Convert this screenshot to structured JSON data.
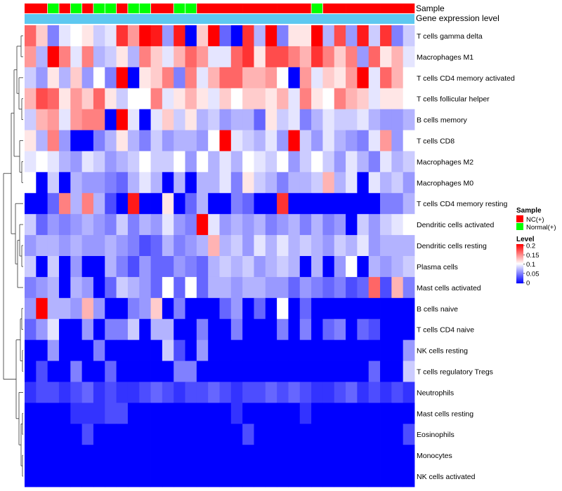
{
  "chart_data": {
    "type": "heatmap",
    "rows": [
      "T cells gamma delta",
      "Macrophages M1",
      "T cells CD4 memory activated",
      "T cells follicular helper",
      "B cells memory",
      "T cells CD8",
      "Macrophages M2",
      "Macrophages M0",
      "T cells CD4 memory resting",
      "Dendritic cells activated",
      "Dendritic cells resting",
      "Plasma cells",
      "Mast cells activated",
      "B cells naive",
      "T cells CD4 naive",
      "NK cells resting",
      "T cells regulatory  Tregs",
      "Neutrophils",
      "Mast cells resting",
      "Eosinophils",
      "Monocytes",
      "NK cells activated"
    ],
    "columns_count": 34,
    "sample_groups": [
      "NC",
      "NC",
      "N",
      "NC",
      "N",
      "NC",
      "N",
      "N",
      "NC",
      "N",
      "N",
      "NC",
      "NC",
      "N",
      "N",
      "NC",
      "NC",
      "NC",
      "NC",
      "NC",
      "NC",
      "NC",
      "NC",
      "NC",
      "NC",
      "N",
      "NC",
      "NC",
      "NC",
      "NC",
      "NC",
      "NC",
      "NC",
      "NC"
    ],
    "annotations": {
      "sample_label": "Sample",
      "gene_label": "Gene expression level"
    },
    "values": [
      [
        0.16,
        0.12,
        0.05,
        0.09,
        0.1,
        0.11,
        0.08,
        0.09,
        0.18,
        0.14,
        0.2,
        0.19,
        0.06,
        0.19,
        0.0,
        0.12,
        0.2,
        0.04,
        0.0,
        0.18,
        0.07,
        0.2,
        0.05,
        0.11,
        0.11,
        0.2,
        0.07,
        0.17,
        0.06,
        0.19,
        0.08,
        0.18,
        0.05,
        0.08
      ],
      [
        0.14,
        0.07,
        0.2,
        0.15,
        0.09,
        0.15,
        0.07,
        0.08,
        0.11,
        0.07,
        0.15,
        0.12,
        0.09,
        0.13,
        0.16,
        0.14,
        0.09,
        0.09,
        0.16,
        0.18,
        0.11,
        0.17,
        0.17,
        0.15,
        0.13,
        0.18,
        0.15,
        0.12,
        0.15,
        0.06,
        0.16,
        0.11,
        0.13,
        0.09
      ],
      [
        0.08,
        0.06,
        0.11,
        0.07,
        0.12,
        0.06,
        0.1,
        0.05,
        0.21,
        0.0,
        0.11,
        0.12,
        0.15,
        0.05,
        0.15,
        0.09,
        0.13,
        0.16,
        0.16,
        0.13,
        0.13,
        0.14,
        0.1,
        0.0,
        0.14,
        0.09,
        0.12,
        0.11,
        0.14,
        0.21,
        0.09,
        0.16,
        0.13,
        0.1
      ],
      [
        0.13,
        0.17,
        0.16,
        0.11,
        0.14,
        0.12,
        0.16,
        0.11,
        0.08,
        0.1,
        0.1,
        0.15,
        0.09,
        0.11,
        0.13,
        0.11,
        0.09,
        0.12,
        0.1,
        0.12,
        0.12,
        0.11,
        0.13,
        0.09,
        0.15,
        0.11,
        0.1,
        0.15,
        0.13,
        0.12,
        0.09,
        0.11,
        0.11,
        0.1
      ],
      [
        0.08,
        0.13,
        0.14,
        0.09,
        0.14,
        0.15,
        0.15,
        0.0,
        0.21,
        0.09,
        0.0,
        0.09,
        0.12,
        0.08,
        0.11,
        0.07,
        0.08,
        0.06,
        0.07,
        0.07,
        0.04,
        0.11,
        0.08,
        0.09,
        0.05,
        0.07,
        0.09,
        0.08,
        0.08,
        0.09,
        0.07,
        0.06,
        0.06,
        0.07
      ],
      [
        0.11,
        0.07,
        0.15,
        0.06,
        0.0,
        0.0,
        0.05,
        0.07,
        0.11,
        0.07,
        0.05,
        0.08,
        0.06,
        0.07,
        0.07,
        0.06,
        0.1,
        0.2,
        0.09,
        0.08,
        0.07,
        0.09,
        0.06,
        0.2,
        0.08,
        0.06,
        0.09,
        0.07,
        0.06,
        0.05,
        0.09,
        0.14,
        0.06,
        0.1
      ],
      [
        0.09,
        0.1,
        0.09,
        0.07,
        0.06,
        0.09,
        0.08,
        0.06,
        0.07,
        0.08,
        0.1,
        0.08,
        0.08,
        0.1,
        0.06,
        0.1,
        0.07,
        0.09,
        0.07,
        0.1,
        0.09,
        0.08,
        0.1,
        0.06,
        0.08,
        0.1,
        0.08,
        0.06,
        0.09,
        0.07,
        0.05,
        0.09,
        0.07,
        0.08
      ],
      [
        0.1,
        0.0,
        0.08,
        0.0,
        0.07,
        0.06,
        0.06,
        0.05,
        0.04,
        0.07,
        0.09,
        0.07,
        0.0,
        0.07,
        0.0,
        0.07,
        0.07,
        0.09,
        0.05,
        0.11,
        0.08,
        0.07,
        0.05,
        0.07,
        0.07,
        0.08,
        0.13,
        0.07,
        0.09,
        0.0,
        0.09,
        0.07,
        0.08,
        0.06
      ],
      [
        0.0,
        0.0,
        0.04,
        0.15,
        0.07,
        0.15,
        0.07,
        0.03,
        0.0,
        0.19,
        0.0,
        0.0,
        0.11,
        0.0,
        0.04,
        0.07,
        0.0,
        0.0,
        0.05,
        0.04,
        0.0,
        0.0,
        0.18,
        0.0,
        0.0,
        0.0,
        0.0,
        0.0,
        0.0,
        0.0,
        0.0,
        0.05,
        0.05,
        0.07
      ],
      [
        0.08,
        0.04,
        0.06,
        0.05,
        0.06,
        0.07,
        0.06,
        0.05,
        0.08,
        0.05,
        0.07,
        0.06,
        0.09,
        0.06,
        0.05,
        0.22,
        0.09,
        0.06,
        0.07,
        0.06,
        0.07,
        0.05,
        0.06,
        0.07,
        0.05,
        0.07,
        0.05,
        0.06,
        0.0,
        0.08,
        0.06,
        0.08,
        0.09,
        0.1
      ],
      [
        0.06,
        0.07,
        0.07,
        0.06,
        0.07,
        0.06,
        0.06,
        0.07,
        0.06,
        0.05,
        0.03,
        0.04,
        0.07,
        0.05,
        0.06,
        0.07,
        0.13,
        0.07,
        0.08,
        0.06,
        0.09,
        0.07,
        0.09,
        0.07,
        0.08,
        0.07,
        0.06,
        0.08,
        0.07,
        0.09,
        0.06,
        0.07,
        0.07,
        0.07
      ],
      [
        0.08,
        0.0,
        0.08,
        0.0,
        0.06,
        0.0,
        0.0,
        0.07,
        0.05,
        0.03,
        0.06,
        0.04,
        0.04,
        0.06,
        0.05,
        0.04,
        0.07,
        0.08,
        0.07,
        0.08,
        0.06,
        0.07,
        0.08,
        0.07,
        0.0,
        0.07,
        0.0,
        0.06,
        0.1,
        0.0,
        0.07,
        0.06,
        0.07,
        0.08
      ],
      [
        0.05,
        0.06,
        0.07,
        0.0,
        0.07,
        0.06,
        0.0,
        0.04,
        0.08,
        0.07,
        0.06,
        0.04,
        0.1,
        0.04,
        0.1,
        0.04,
        0.07,
        0.07,
        0.06,
        0.07,
        0.07,
        0.06,
        0.06,
        0.04,
        0.06,
        0.05,
        0.04,
        0.05,
        0.03,
        0.04,
        0.16,
        0.03,
        0.13,
        0.05
      ],
      [
        0.06,
        0.22,
        0.07,
        0.07,
        0.06,
        0.13,
        0.06,
        0.0,
        0.0,
        0.05,
        0.06,
        0.12,
        0.0,
        0.05,
        0.0,
        0.0,
        0.0,
        0.04,
        0.06,
        0.0,
        0.04,
        0.0,
        0.1,
        0.0,
        0.04,
        0.0,
        0.0,
        0.0,
        0.0,
        0.0,
        0.0,
        0.0,
        0.0,
        0.0
      ],
      [
        0.04,
        0.06,
        0.09,
        0.0,
        0.0,
        0.06,
        0.0,
        0.05,
        0.05,
        0.08,
        0.0,
        0.07,
        0.07,
        0.0,
        0.0,
        0.05,
        0.0,
        0.0,
        0.05,
        0.0,
        0.0,
        0.0,
        0.05,
        0.0,
        0.05,
        0.0,
        0.04,
        0.05,
        0.0,
        0.04,
        0.03,
        0.0,
        0.0,
        0.0
      ],
      [
        0.0,
        0.0,
        0.06,
        0.0,
        0.0,
        0.0,
        0.05,
        0.0,
        0.0,
        0.0,
        0.0,
        0.0,
        0.08,
        0.03,
        0.0,
        0.06,
        0.0,
        0.0,
        0.0,
        0.0,
        0.0,
        0.0,
        0.0,
        0.0,
        0.0,
        0.0,
        0.0,
        0.0,
        0.0,
        0.0,
        0.0,
        0.0,
        0.0,
        0.06
      ],
      [
        0.0,
        0.03,
        0.0,
        0.0,
        0.05,
        0.0,
        0.0,
        0.04,
        0.0,
        0.0,
        0.0,
        0.0,
        0.0,
        0.05,
        0.05,
        0.0,
        0.0,
        0.0,
        0.0,
        0.0,
        0.0,
        0.0,
        0.0,
        0.0,
        0.0,
        0.0,
        0.0,
        0.0,
        0.0,
        0.0,
        0.04,
        0.0,
        0.0,
        0.08
      ],
      [
        0.02,
        0.03,
        0.03,
        0.02,
        0.03,
        0.04,
        0.02,
        0.03,
        0.02,
        0.02,
        0.03,
        0.04,
        0.03,
        0.02,
        0.03,
        0.03,
        0.04,
        0.03,
        0.02,
        0.03,
        0.03,
        0.04,
        0.03,
        0.04,
        0.03,
        0.02,
        0.02,
        0.03,
        0.04,
        0.02,
        0.03,
        0.02,
        0.03,
        0.02
      ],
      [
        0.0,
        0.0,
        0.0,
        0.0,
        0.02,
        0.02,
        0.02,
        0.03,
        0.03,
        0.0,
        0.0,
        0.0,
        0.0,
        0.0,
        0.0,
        0.0,
        0.0,
        0.0,
        0.02,
        0.0,
        0.0,
        0.0,
        0.0,
        0.0,
        0.02,
        0.0,
        0.0,
        0.0,
        0.0,
        0.0,
        0.0,
        0.0,
        0.0,
        0.0
      ],
      [
        0.0,
        0.0,
        0.0,
        0.0,
        0.0,
        0.03,
        0.0,
        0.0,
        0.0,
        0.0,
        0.0,
        0.0,
        0.0,
        0.0,
        0.0,
        0.0,
        0.0,
        0.0,
        0.0,
        0.03,
        0.0,
        0.0,
        0.0,
        0.0,
        0.0,
        0.0,
        0.0,
        0.0,
        0.0,
        0.0,
        0.0,
        0.0,
        0.0,
        0.03
      ],
      [
        0.0,
        0.0,
        0.0,
        0.0,
        0.0,
        0.0,
        0.0,
        0.0,
        0.0,
        0.0,
        0.0,
        0.0,
        0.0,
        0.0,
        0.0,
        0.0,
        0.0,
        0.0,
        0.0,
        0.0,
        0.0,
        0.0,
        0.0,
        0.0,
        0.0,
        0.0,
        0.0,
        0.0,
        0.0,
        0.0,
        0.0,
        0.0,
        0.0,
        0.0
      ],
      [
        0.0,
        0.0,
        0.0,
        0.0,
        0.0,
        0.0,
        0.0,
        0.0,
        0.0,
        0.0,
        0.0,
        0.0,
        0.0,
        0.0,
        0.0,
        0.0,
        0.0,
        0.0,
        0.0,
        0.0,
        0.0,
        0.0,
        0.0,
        0.0,
        0.0,
        0.0,
        0.0,
        0.0,
        0.0,
        0.0,
        0.0,
        0.0,
        0.0,
        0.0
      ]
    ],
    "color_scale": {
      "min": 0,
      "max": 0.2,
      "low_color": "#0000ff",
      "mid_color": "#ffffff",
      "high_color": "#ff0000"
    },
    "legend": {
      "sample_title": "Sample",
      "sample_items": [
        {
          "key": "NC",
          "label": "NC(+)",
          "color": "#ff0000"
        },
        {
          "key": "N",
          "label": "Normal(+)",
          "color": "#00ff00"
        }
      ],
      "level_title": "Level",
      "level_ticks": [
        "0.2",
        "0.15",
        "0.1",
        "0.05",
        "0"
      ],
      "level_tick_values": [
        0.2,
        0.15,
        0.1,
        0.05,
        0
      ]
    },
    "gene_level_color": "#5ec8f0"
  }
}
